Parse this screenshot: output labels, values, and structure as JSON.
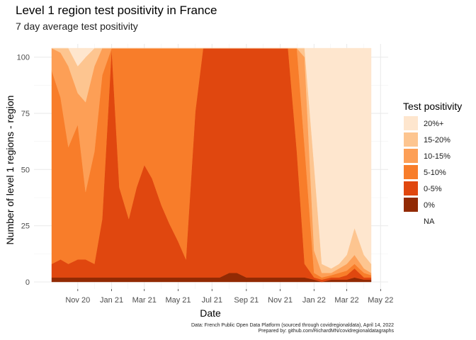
{
  "chart_data": {
    "type": "area",
    "title": "Level 1 region test positivity in France",
    "subtitle": "7 day average test positivity",
    "xlabel": "Date",
    "ylabel": "Number of level 1 regions - region",
    "x_ticks": [
      "Nov 20",
      "Jan 21",
      "Mar 21",
      "May 21",
      "Jul 21",
      "Sep 21",
      "Nov 21",
      "Jan 22",
      "Mar 22",
      "May 22"
    ],
    "y_ticks": [
      "0",
      "25",
      "50",
      "75",
      "100"
    ],
    "ylim": [
      0,
      104
    ],
    "x_range": [
      "2020-09-15",
      "2022-04-14"
    ],
    "stacking": "top-to-bottom: 20%+, 15-20%, 10-15%, 5-10%, 0-5%, 0%",
    "legend": {
      "title": "Test positivity",
      "placement": "right",
      "entries": [
        {
          "label": "20%+",
          "color": "#fee6ce"
        },
        {
          "label": "15-20%",
          "color": "#fdc590"
        },
        {
          "label": "10-15%",
          "color": "#fd9f56"
        },
        {
          "label": "5-10%",
          "color": "#f87d2a"
        },
        {
          "label": "0-5%",
          "color": "#e0470f"
        },
        {
          "label": "0%",
          "color": "#922a04"
        },
        {
          "label": "NA",
          "color": "#ffffff"
        }
      ]
    },
    "series_date": [
      "2020-09-15",
      "2020-10-01",
      "2020-10-15",
      "2020-11-01",
      "2020-11-15",
      "2020-12-01",
      "2020-12-15",
      "2021-01-01",
      "2021-01-15",
      "2021-02-01",
      "2021-02-15",
      "2021-03-01",
      "2021-03-15",
      "2021-04-01",
      "2021-04-15",
      "2021-05-01",
      "2021-05-15",
      "2021-06-01",
      "2021-06-15",
      "2021-07-01",
      "2021-07-15",
      "2021-08-01",
      "2021-08-15",
      "2021-09-01",
      "2021-09-15",
      "2021-10-01",
      "2021-10-15",
      "2021-11-01",
      "2021-11-15",
      "2021-12-01",
      "2021-12-15",
      "2022-01-01",
      "2022-01-15",
      "2022-02-01",
      "2022-02-15",
      "2022-03-01",
      "2022-03-15",
      "2022-04-01",
      "2022-04-14"
    ],
    "series": [
      {
        "name": "20%+",
        "values": [
          0,
          0,
          0,
          8,
          4,
          0,
          0,
          0,
          0,
          0,
          0,
          0,
          0,
          0,
          0,
          0,
          0,
          0,
          0,
          0,
          0,
          0,
          0,
          0,
          0,
          0,
          0,
          0,
          0,
          0,
          0,
          52,
          96,
          98,
          96,
          92,
          80,
          92,
          96
        ]
      },
      {
        "name": "15-20%",
        "values": [
          0,
          2,
          8,
          12,
          20,
          8,
          0,
          0,
          0,
          0,
          0,
          0,
          0,
          0,
          0,
          0,
          0,
          0,
          0,
          0,
          0,
          0,
          0,
          0,
          0,
          0,
          0,
          0,
          0,
          0,
          4,
          38,
          4,
          2,
          2,
          4,
          12,
          6,
          4
        ]
      },
      {
        "name": "10-15%",
        "values": [
          10,
          20,
          36,
          14,
          40,
          38,
          12,
          0,
          0,
          0,
          0,
          0,
          0,
          0,
          0,
          0,
          0,
          0,
          0,
          0,
          0,
          0,
          0,
          0,
          0,
          0,
          0,
          0,
          0,
          0,
          40,
          10,
          2,
          1,
          2,
          3,
          4,
          2,
          1
        ]
      },
      {
        "name": "5-10%",
        "values": [
          86,
          72,
          52,
          60,
          30,
          50,
          64,
          0,
          62,
          76,
          62,
          52,
          58,
          70,
          78,
          86,
          94,
          28,
          0,
          0,
          0,
          0,
          0,
          0,
          0,
          0,
          0,
          0,
          0,
          46,
          52,
          2,
          1,
          1,
          2,
          2,
          2,
          2,
          1
        ]
      },
      {
        "name": "0-5%",
        "values": [
          6,
          8,
          6,
          8,
          8,
          6,
          26,
          102,
          40,
          26,
          40,
          50,
          44,
          32,
          24,
          16,
          8,
          74,
          102,
          102,
          102,
          100,
          100,
          102,
          102,
          102,
          102,
          102,
          102,
          56,
          6,
          1,
          1,
          1,
          1,
          2,
          4,
          1,
          1
        ]
      },
      {
        "name": "0%",
        "values": [
          2,
          2,
          2,
          2,
          2,
          2,
          2,
          2,
          2,
          2,
          2,
          2,
          2,
          2,
          2,
          2,
          2,
          2,
          2,
          2,
          2,
          4,
          4,
          2,
          2,
          2,
          2,
          2,
          2,
          2,
          2,
          1,
          0,
          1,
          1,
          1,
          2,
          1,
          1
        ]
      }
    ]
  },
  "caption": {
    "line1": "Data: French Public Open Data Platform (sourced through covidregionaldata), April 14, 2022",
    "line2": "Prepared by: github.com/RichardMN/covidregionaldatagraphs"
  }
}
